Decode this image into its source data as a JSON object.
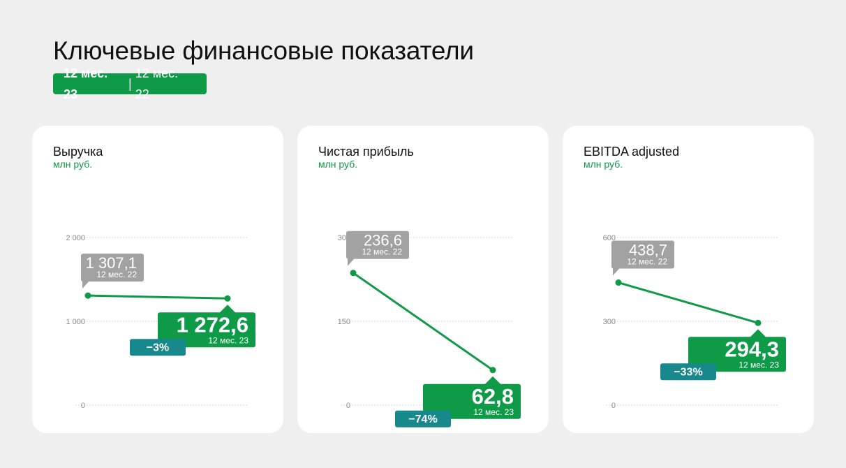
{
  "header": {
    "title": "Ключевые финансовые показатели",
    "period_active": "12 мес. 23",
    "period_separator": "|",
    "period_other": "12 мес. 22"
  },
  "colors": {
    "accent_green": "#0e9a47",
    "previous_gray": "#a2a2a2",
    "delta_teal": "#17898c",
    "card_background": "#ffffff",
    "page_background": "#efefef"
  },
  "cards": [
    {
      "title": "Выручка",
      "unit": "млн руб."
    },
    {
      "title": "Чистая прибыль",
      "unit": "млн руб."
    },
    {
      "title": "EBITDA adjusted",
      "unit": "млн руб."
    }
  ],
  "chart_data": [
    {
      "type": "line",
      "title": "Выручка",
      "ylabel": "млн руб.",
      "x": [
        "12 мес. 22",
        "12 мес. 23"
      ],
      "values": [
        1307.1,
        1272.6
      ],
      "ylim": [
        0,
        2000
      ],
      "yticks": [
        0,
        1000,
        2000
      ],
      "ytick_labels": [
        "0",
        "1 000",
        "2 000"
      ],
      "grid": true,
      "prev_label": "1 307,1",
      "prev_period": "12 мес. 22",
      "curr_label": "1 272,6",
      "curr_period": "12 мес. 23",
      "change": "−3%"
    },
    {
      "type": "line",
      "title": "Чистая прибыль",
      "ylabel": "млн руб.",
      "x": [
        "12 мес. 22",
        "12 мес. 23"
      ],
      "values": [
        236.6,
        62.8
      ],
      "ylim": [
        0,
        300
      ],
      "yticks": [
        0,
        150,
        300
      ],
      "ytick_labels": [
        "0",
        "150",
        "300"
      ],
      "grid": true,
      "prev_label": "236,6",
      "prev_period": "12 мес. 22",
      "curr_label": "62,8",
      "curr_period": "12 мес. 23",
      "change": "−74%"
    },
    {
      "type": "line",
      "title": "EBITDA adjusted",
      "ylabel": "млн руб.",
      "x": [
        "12 мес. 22",
        "12 мес. 23"
      ],
      "values": [
        438.7,
        294.3
      ],
      "ylim": [
        0,
        600
      ],
      "yticks": [
        0,
        300,
        600
      ],
      "ytick_labels": [
        "0",
        "300",
        "600"
      ],
      "grid": true,
      "prev_label": "438,7",
      "prev_period": "12 мес. 22",
      "curr_label": "294,3",
      "curr_period": "12 мес. 23",
      "change": "−33%"
    }
  ]
}
